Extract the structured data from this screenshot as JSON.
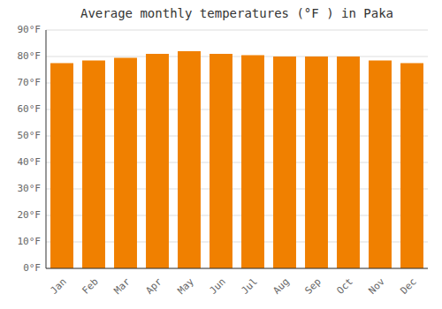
{
  "chart_data": {
    "type": "bar",
    "title": "Average monthly temperatures (°F ) in Paka",
    "categories": [
      "Jan",
      "Feb",
      "Mar",
      "Apr",
      "May",
      "Jun",
      "Jul",
      "Aug",
      "Sep",
      "Oct",
      "Nov",
      "Dec"
    ],
    "values": [
      77.5,
      78.5,
      79.5,
      81.0,
      82.0,
      81.0,
      80.5,
      80.0,
      80.0,
      80.0,
      78.5,
      77.5
    ],
    "color": "#F08000",
    "ylim": [
      0,
      90
    ],
    "yticks": [
      {
        "value": 0,
        "label": "0°F"
      },
      {
        "value": 10,
        "label": "10°F"
      },
      {
        "value": 20,
        "label": "20°F"
      },
      {
        "value": 30,
        "label": "30°F"
      },
      {
        "value": 40,
        "label": "40°F"
      },
      {
        "value": 50,
        "label": "50°F"
      },
      {
        "value": 60,
        "label": "60°F"
      },
      {
        "value": 70,
        "label": "70°F"
      },
      {
        "value": 80,
        "label": "80°F"
      },
      {
        "value": 90,
        "label": "90°F"
      }
    ],
    "grid": true
  }
}
